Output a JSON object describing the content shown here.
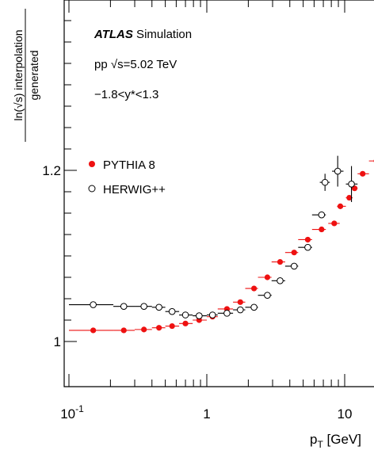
{
  "chart_data": {
    "type": "scatter",
    "x_scale": "log",
    "xlim": [
      0.1,
      20
    ],
    "ylim": [
      0.985,
      1.39
    ],
    "grid": false,
    "legend_placement": "left",
    "xlabel_main": "p",
    "xlabel_sub": "T",
    "xlabel_unit": " [GeV]",
    "ylabel_numerator": "ln(√s) interpolation",
    "ylabel_denominator": "generated",
    "x_tick_labels": [
      {
        "value": 0.1,
        "base": "10",
        "exp": "-1"
      },
      {
        "value": 1,
        "base": "1",
        "exp": ""
      },
      {
        "value": 10,
        "base": "10",
        "exp": ""
      }
    ],
    "y_tick_labels": [
      {
        "value": 1.0,
        "label": "1"
      },
      {
        "value": 1.2,
        "label": "1.2"
      }
    ],
    "annotations": {
      "atlas": "ATLAS",
      "simulation": " Simulation",
      "energy": "pp √s=5.02 TeV",
      "rapidity": "−1.8<y*<1.3"
    },
    "series": [
      {
        "name": "PYTHIA 8",
        "marker": "filled-circle",
        "color": "#ee1111",
        "points": [
          {
            "x": 0.15,
            "y": 1.013,
            "xlo": 0.1,
            "xhi": 0.21
          },
          {
            "x": 0.25,
            "y": 1.013,
            "xlo": 0.21,
            "xhi": 0.3
          },
          {
            "x": 0.35,
            "y": 1.014,
            "xlo": 0.3,
            "xhi": 0.4
          },
          {
            "x": 0.45,
            "y": 1.016,
            "xlo": 0.4,
            "xhi": 0.5
          },
          {
            "x": 0.56,
            "y": 1.018,
            "xlo": 0.5,
            "xhi": 0.63
          },
          {
            "x": 0.7,
            "y": 1.021,
            "xlo": 0.63,
            "xhi": 0.79
          },
          {
            "x": 0.88,
            "y": 1.025,
            "xlo": 0.79,
            "xhi": 1.0
          },
          {
            "x": 1.1,
            "y": 1.029,
            "xlo": 1.0,
            "xhi": 1.2
          },
          {
            "x": 1.4,
            "y": 1.038,
            "xlo": 1.2,
            "xhi": 1.55
          },
          {
            "x": 1.75,
            "y": 1.046,
            "xlo": 1.55,
            "xhi": 1.9
          },
          {
            "x": 2.2,
            "y": 1.062,
            "xlo": 1.9,
            "xhi": 2.35
          },
          {
            "x": 2.75,
            "y": 1.075,
            "xlo": 2.35,
            "xhi": 2.95
          },
          {
            "x": 3.4,
            "y": 1.093,
            "xlo": 2.95,
            "xhi": 3.7
          },
          {
            "x": 4.3,
            "y": 1.104,
            "xlo": 3.7,
            "xhi": 4.6
          },
          {
            "x": 5.4,
            "y": 1.119,
            "xlo": 4.6,
            "xhi": 5.8
          },
          {
            "x": 6.8,
            "y": 1.131,
            "xlo": 5.8,
            "xhi": 7.3
          },
          {
            "x": 8.4,
            "y": 1.138,
            "xlo": 7.6,
            "xhi": 9.2
          },
          {
            "x": 9.3,
            "y": 1.158,
            "xlo": 8.8,
            "xhi": 10.2
          },
          {
            "x": 10.8,
            "y": 1.168,
            "xlo": 10.2,
            "xhi": 11.4
          },
          {
            "x": 11.8,
            "y": 1.179,
            "xlo": 11.4,
            "xhi": 12.4
          },
          {
            "x": 13.5,
            "y": 1.196,
            "xlo": 12.4,
            "xhi": 15.0
          },
          {
            "x": 17.0,
            "y": 1.211,
            "xlo": 15.0,
            "xhi": 20
          }
        ]
      },
      {
        "name": "HERWIG++",
        "marker": "open-circle",
        "color": "#000000",
        "points": [
          {
            "x": 0.15,
            "y": 1.043,
            "xlo": 0.1,
            "xhi": 0.21
          },
          {
            "x": 0.25,
            "y": 1.041,
            "xlo": 0.21,
            "xhi": 0.3
          },
          {
            "x": 0.35,
            "y": 1.041,
            "xlo": 0.3,
            "xhi": 0.4
          },
          {
            "x": 0.45,
            "y": 1.04,
            "xlo": 0.4,
            "xhi": 0.5
          },
          {
            "x": 0.56,
            "y": 1.035,
            "xlo": 0.5,
            "xhi": 0.63
          },
          {
            "x": 0.7,
            "y": 1.031,
            "xlo": 0.63,
            "xhi": 0.79
          },
          {
            "x": 0.88,
            "y": 1.03,
            "xlo": 0.79,
            "xhi": 1.0
          },
          {
            "x": 1.1,
            "y": 1.031,
            "xlo": 1.0,
            "xhi": 1.2
          },
          {
            "x": 1.4,
            "y": 1.033,
            "xlo": 1.2,
            "xhi": 1.55
          },
          {
            "x": 1.75,
            "y": 1.037,
            "xlo": 1.55,
            "xhi": 1.9
          },
          {
            "x": 2.2,
            "y": 1.04,
            "xlo": 1.9,
            "xhi": 2.35
          },
          {
            "x": 2.75,
            "y": 1.054,
            "xlo": 2.35,
            "xhi": 2.95
          },
          {
            "x": 3.4,
            "y": 1.071,
            "xlo": 2.95,
            "xhi": 3.7
          },
          {
            "x": 4.3,
            "y": 1.088,
            "xlo": 3.7,
            "xhi": 4.6
          },
          {
            "x": 5.4,
            "y": 1.11,
            "xlo": 4.6,
            "xhi": 5.8
          },
          {
            "x": 6.8,
            "y": 1.148,
            "xlo": 5.8,
            "xhi": 7.3
          },
          {
            "x": 7.2,
            "y": 1.186,
            "xlo": 6.6,
            "xhi": 7.8,
            "ylo": 1.176,
            "yhi": 1.196
          },
          {
            "x": 8.9,
            "y": 1.199,
            "xlo": 8.1,
            "xhi": 9.8,
            "ylo": 1.181,
            "yhi": 1.217
          },
          {
            "x": 11.2,
            "y": 1.184,
            "xlo": 10.2,
            "xhi": 12.4,
            "ylo": 1.163,
            "yhi": 1.205
          }
        ]
      }
    ]
  }
}
